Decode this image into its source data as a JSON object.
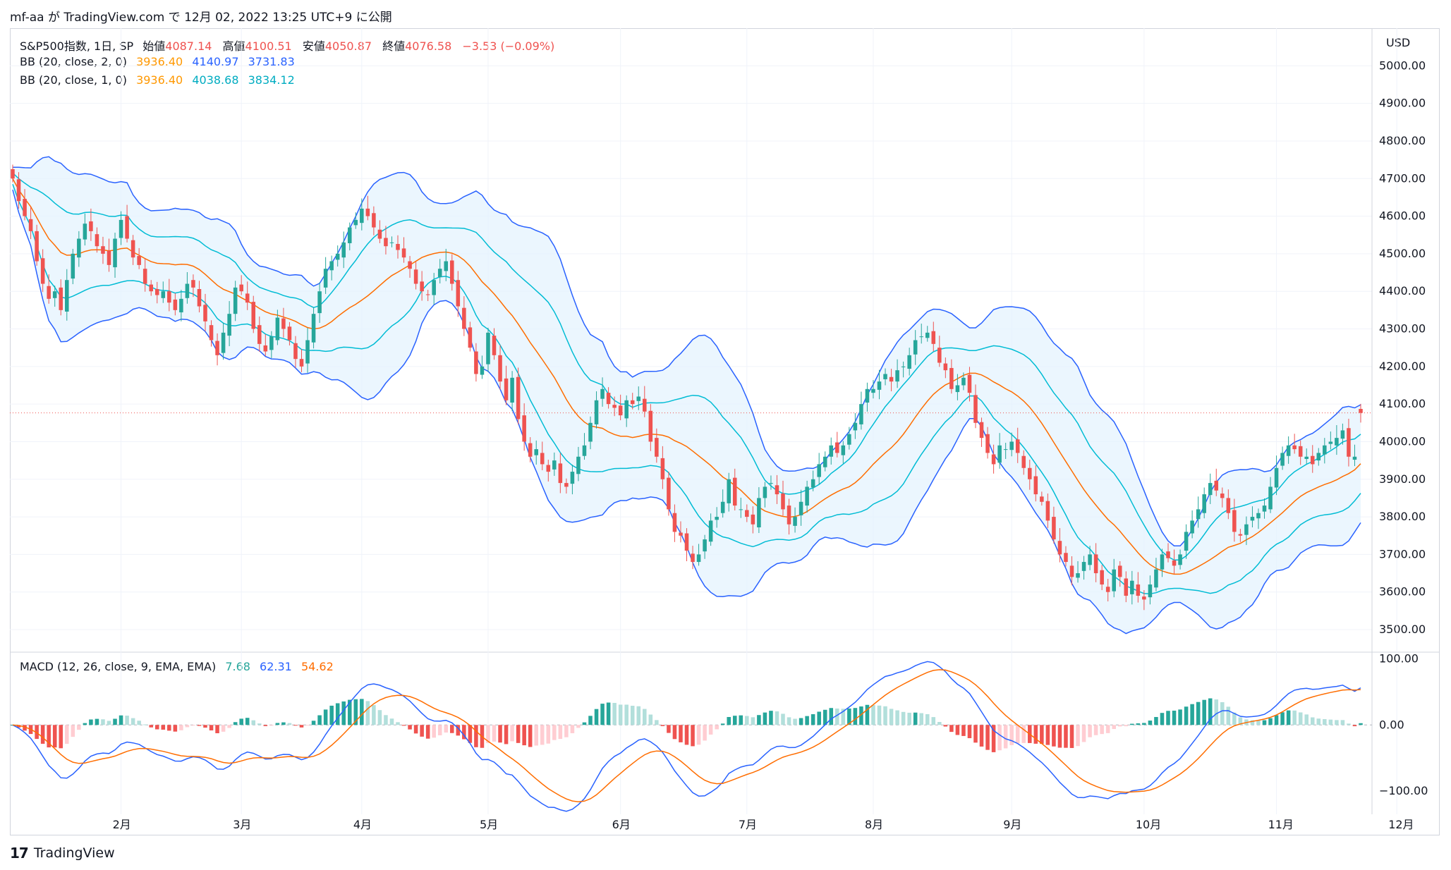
{
  "header": {
    "attribution": "mf-aa が TradingView.com で 12月 02, 2022 13:25 UTC+9 に公開"
  },
  "legend": {
    "symbol": "S&P500指数, 1日, SP",
    "open_label": "始値",
    "open": "4087.14",
    "high_label": "高値",
    "high": "4100.51",
    "low_label": "安値",
    "low": "4050.87",
    "close_label": "終値",
    "close": "4076.58",
    "change": "−3.53 (−0.09%)",
    "bb2_label": "BB (20, close, 2, 0)",
    "bb2_basis": "3936.40",
    "bb2_upper": "4140.97",
    "bb2_lower": "3731.83",
    "bb1_label": "BB (20, close, 1, 0)",
    "bb1_basis": "3936.40",
    "bb1_upper": "4038.68",
    "bb1_lower": "3834.12",
    "macd_label": "MACD (12, 26, close, 9, EMA, EMA)",
    "macd_hist": "7.68",
    "macd_line": "62.31",
    "macd_signal": "54.62"
  },
  "currency": "USD",
  "price_axis": [
    "5000.00",
    "4900.00",
    "4800.00",
    "4700.00",
    "4600.00",
    "4500.00",
    "4400.00",
    "4300.00",
    "4200.00",
    "4100.00",
    "4000.00",
    "3900.00",
    "3800.00",
    "3700.00",
    "3600.00",
    "3500.00"
  ],
  "macd_axis": [
    "100.00",
    "0.00",
    "−100.00"
  ],
  "months": [
    "2月",
    "3月",
    "4月",
    "5月",
    "6月",
    "7月",
    "8月",
    "9月",
    "10月",
    "11月",
    "12月"
  ],
  "footer": {
    "brand": "TradingView"
  },
  "colors": {
    "up": "#26a69a",
    "down": "#ef5350",
    "bb2": "#2962ff",
    "bb1": "#00bcd4",
    "basis": "#ff6d00",
    "fill": "#e3f2fd"
  },
  "chart_data": [
    {
      "type": "candlestick",
      "title": "S&P500指数, 1日, SP",
      "ylabel": "USD",
      "ylim": [
        3440,
        5100
      ],
      "months": [
        "2月",
        "3月",
        "4月",
        "5月",
        "6月",
        "7月",
        "8月",
        "9月",
        "10月",
        "11月",
        "12月"
      ],
      "month_index": [
        18,
        38,
        58,
        79,
        101,
        122,
        143,
        166,
        188,
        210,
        230
      ],
      "close": [
        4700,
        4640,
        4600,
        4560,
        4480,
        4420,
        4380,
        4400,
        4350,
        4430,
        4500,
        4540,
        4580,
        4560,
        4520,
        4500,
        4470,
        4540,
        4590,
        4540,
        4490,
        4470,
        4420,
        4400,
        4390,
        4400,
        4370,
        4350,
        4380,
        4420,
        4410,
        4360,
        4320,
        4270,
        4230,
        4290,
        4340,
        4410,
        4400,
        4370,
        4300,
        4260,
        4240,
        4280,
        4330,
        4300,
        4270,
        4220,
        4200,
        4270,
        4340,
        4400,
        4460,
        4480,
        4500,
        4530,
        4570,
        4590,
        4620,
        4600,
        4570,
        4540,
        4520,
        4530,
        4510,
        4490,
        4460,
        4420,
        4400,
        4390,
        4430,
        4460,
        4480,
        4420,
        4360,
        4300,
        4250,
        4180,
        4200,
        4290,
        4230,
        4160,
        4110,
        4170,
        4060,
        4000,
        3960,
        3980,
        3940,
        3920,
        3950,
        3890,
        3880,
        3920,
        3960,
        3990,
        4050,
        4110,
        4140,
        4100,
        4090,
        4070,
        4110,
        4100,
        4120,
        4080,
        4000,
        3960,
        3900,
        3820,
        3760,
        3750,
        3710,
        3680,
        3700,
        3740,
        3790,
        3800,
        3840,
        3900,
        3830,
        3820,
        3800,
        3780,
        3850,
        3880,
        3890,
        3860,
        3820,
        3780,
        3800,
        3840,
        3880,
        3900,
        3940,
        3960,
        3990,
        3970,
        3990,
        4020,
        4050,
        4100,
        4140,
        4140,
        4160,
        4180,
        4160,
        4190,
        4200,
        4230,
        4270,
        4280,
        4290,
        4260,
        4210,
        4190,
        4140,
        4150,
        4170,
        4130,
        4050,
        4010,
        3970,
        3940,
        3990,
        3980,
        4000,
        3970,
        3930,
        3900,
        3860,
        3840,
        3790,
        3740,
        3700,
        3680,
        3640,
        3650,
        3680,
        3700,
        3650,
        3620,
        3600,
        3660,
        3640,
        3590,
        3630,
        3590,
        3580,
        3620,
        3660,
        3700,
        3690,
        3670,
        3700,
        3760,
        3790,
        3820,
        3860,
        3890,
        3870,
        3850,
        3810,
        3760,
        3750,
        3780,
        3800,
        3810,
        3830,
        3880,
        3930,
        3970,
        3990,
        3980,
        3960,
        3960,
        3940,
        3970,
        3990,
        4000,
        4010,
        4030,
        3960,
        3960,
        4076.58
      ]
    },
    {
      "type": "bar",
      "title": "MACD (12, 26, close, 9, EMA, EMA)",
      "ylim": [
        -135,
        110
      ],
      "note": "histogram + MACD line + signal line"
    }
  ]
}
